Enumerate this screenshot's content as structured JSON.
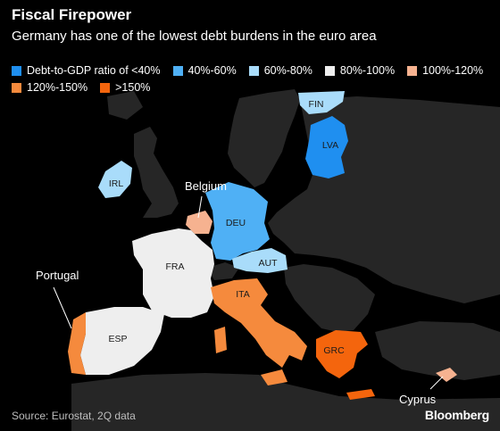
{
  "header": {
    "title": "Fiscal Firepower",
    "subtitle": "Germany has one of the lowest debt burdens in the euro area"
  },
  "legend": {
    "items": [
      {
        "label": "Debt-to-GDP ratio of <40%",
        "color": "#1f8ff0"
      },
      {
        "label": "40%-60%",
        "color": "#4fb0f5"
      },
      {
        "label": "60%-80%",
        "color": "#a9dcfa"
      },
      {
        "label": "80%-100%",
        "color": "#eeeeee"
      },
      {
        "label": "100%-120%",
        "color": "#f6b290"
      },
      {
        "label": "120%-150%",
        "color": "#f58a3d"
      },
      {
        "label": ">150%",
        "color": "#f4650d"
      }
    ]
  },
  "map": {
    "land_color": "#262626",
    "sea_color": "#000000",
    "country_labels": {
      "fin": "FIN",
      "lva": "LVA",
      "irl": "IRL",
      "deu": "DEU",
      "fra": "FRA",
      "aut": "AUT",
      "ita": "ITA",
      "esp": "ESP",
      "grc": "GRC"
    },
    "callouts": {
      "belgium": "Belgium",
      "portugal": "Portugal",
      "cyprus": "Cyprus"
    }
  },
  "footer": {
    "source": "Source: Eurostat, 2Q data",
    "brand": "Bloomberg"
  }
}
